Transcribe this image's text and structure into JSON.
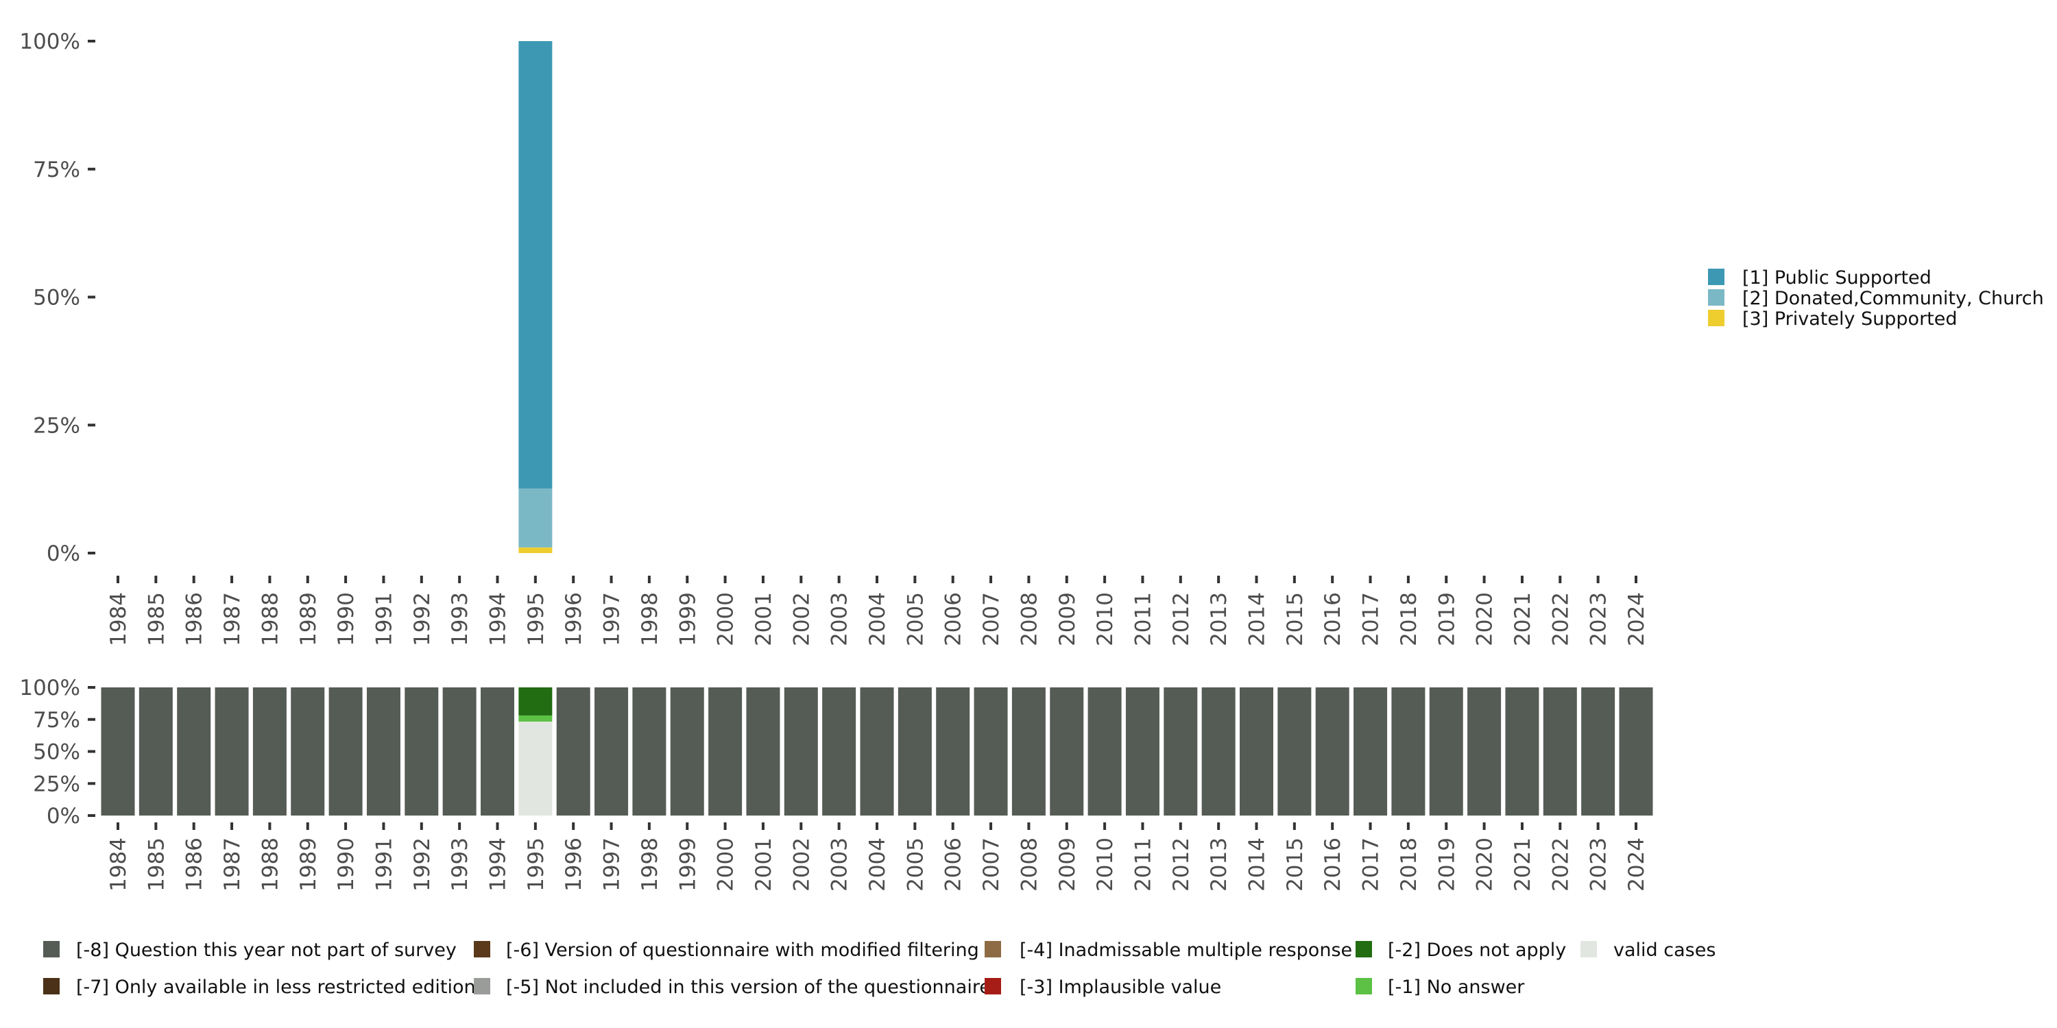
{
  "chart_data": [
    {
      "type": "bar",
      "stacked": true,
      "title": "",
      "xlabel": "",
      "ylabel": "",
      "ylim": [
        0,
        100
      ],
      "yticks": [
        "0%",
        "25%",
        "50%",
        "75%",
        "100%"
      ],
      "categories": [
        "1984",
        "1985",
        "1986",
        "1987",
        "1988",
        "1989",
        "1990",
        "1991",
        "1992",
        "1993",
        "1994",
        "1995",
        "1996",
        "1997",
        "1998",
        "1999",
        "2000",
        "2001",
        "2002",
        "2003",
        "2004",
        "2005",
        "2006",
        "2007",
        "2008",
        "2009",
        "2010",
        "2011",
        "2012",
        "2013",
        "2014",
        "2015",
        "2016",
        "2017",
        "2018",
        "2019",
        "2020",
        "2021",
        "2022",
        "2023",
        "2024"
      ],
      "legend_position": "right",
      "series": [
        {
          "name": "[3] Privately Supported",
          "color": "#eece2e",
          "values": {
            "1995": 1.1
          }
        },
        {
          "name": "[2] Donated,Community, Church",
          "color": "#7bb8c6",
          "values": {
            "1995": 11.5
          }
        },
        {
          "name": "[1] Public Supported",
          "color": "#3d99b3",
          "values": {
            "1995": 87.4
          }
        }
      ],
      "legend_order": [
        "[1] Public Supported",
        "[2] Donated,Community, Church",
        "[3] Privately Supported"
      ]
    },
    {
      "type": "bar",
      "stacked": true,
      "ylim": [
        0,
        100
      ],
      "yticks": [
        "0%",
        "25%",
        "50%",
        "75%",
        "100%"
      ],
      "legend_position": "bottom",
      "series_meta": [
        {
          "name": "[-8] Question this year not part of survey",
          "color": "#555b55"
        },
        {
          "name": "[-7] Only available in less restricted edition",
          "color": "#4a3118"
        },
        {
          "name": "[-6] Version of questionnaire with modified filtering",
          "color": "#5a3a1a"
        },
        {
          "name": "[-5] Not included in this version of the questionnaire",
          "color": "#999c98"
        },
        {
          "name": "[-4] Inadmissable multiple response",
          "color": "#8e6b45"
        },
        {
          "name": "[-3] Implausible value",
          "color": "#a61c16"
        },
        {
          "name": "[-2] Does not apply",
          "color": "#226c12"
        },
        {
          "name": "[-1] No answer",
          "color": "#5cc144"
        },
        {
          "name": "valid cases",
          "color": "#e1e6e0"
        }
      ],
      "stacks": {
        "default": [
          {
            "name": "[-8] Question this year not part of survey",
            "value": 100
          }
        ],
        "1995": [
          {
            "name": "valid cases",
            "value": 73.3
          },
          {
            "name": "[-1] No answer",
            "value": 4.8
          },
          {
            "name": "[-2] Does not apply",
            "value": 21.9
          }
        ]
      }
    }
  ]
}
